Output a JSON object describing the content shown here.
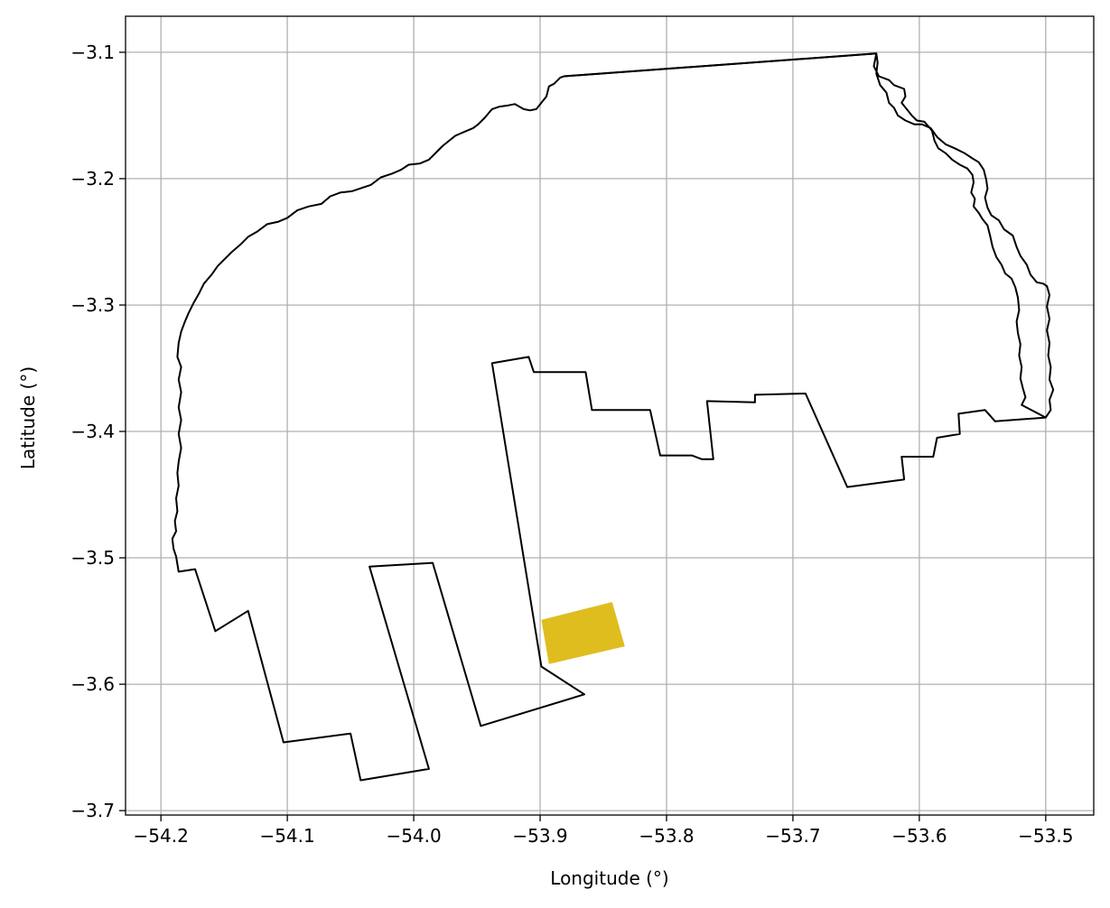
{
  "chart_data": {
    "type": "map",
    "xlabel": "Longitude (°)",
    "ylabel": "Latitude (°)",
    "xlim": [
      -54.228,
      -53.462
    ],
    "ylim": [
      -3.7035,
      -3.0715
    ],
    "grid": true,
    "x_ticks": [
      -54.2,
      -54.1,
      -54.0,
      -53.9,
      -53.8,
      -53.7,
      -53.6,
      -53.5
    ],
    "x_tick_labels": [
      "−54.2",
      "−54.1",
      "−54.0",
      "−53.9",
      "−53.8",
      "−53.7",
      "−53.6",
      "−53.5"
    ],
    "y_ticks": [
      -3.1,
      -3.2,
      -3.3,
      -3.4,
      -3.5,
      -3.6,
      -3.7
    ],
    "y_tick_labels": [
      "−3.1",
      "−3.2",
      "−3.3",
      "−3.4",
      "−3.5",
      "−3.6",
      "−3.7"
    ],
    "colors": {
      "outline": "#000000",
      "highlight": "#dfbd1f",
      "grid": "#b0b0b0"
    },
    "boundary": [
      [
        -53.634,
        -3.101
      ],
      [
        -53.636,
        -3.111
      ],
      [
        -53.632,
        -3.119
      ],
      [
        -53.624,
        -3.122
      ],
      [
        -53.62,
        -3.126
      ],
      [
        -53.612,
        -3.129
      ],
      [
        -53.611,
        -3.135
      ],
      [
        -53.614,
        -3.14
      ],
      [
        -53.61,
        -3.145
      ],
      [
        -53.606,
        -3.15
      ],
      [
        -53.602,
        -3.154
      ],
      [
        -53.596,
        -3.155
      ],
      [
        -53.59,
        -3.162
      ],
      [
        -53.588,
        -3.17
      ],
      [
        -53.585,
        -3.176
      ],
      [
        -53.579,
        -3.18
      ],
      [
        -53.574,
        -3.185
      ],
      [
        -53.568,
        -3.189
      ],
      [
        -53.562,
        -3.192
      ],
      [
        -53.558,
        -3.197
      ],
      [
        -53.557,
        -3.203
      ],
      [
        -53.559,
        -3.211
      ],
      [
        -53.556,
        -3.216
      ],
      [
        -53.557,
        -3.222
      ],
      [
        -53.553,
        -3.227
      ],
      [
        -53.55,
        -3.232
      ],
      [
        -53.546,
        -3.237
      ],
      [
        -53.544,
        -3.245
      ],
      [
        -53.542,
        -3.254
      ],
      [
        -53.539,
        -3.262
      ],
      [
        -53.535,
        -3.268
      ],
      [
        -53.532,
        -3.275
      ],
      [
        -53.527,
        -3.279
      ],
      [
        -53.524,
        -3.286
      ],
      [
        -53.522,
        -3.294
      ],
      [
        -53.521,
        -3.304
      ],
      [
        -53.523,
        -3.313
      ],
      [
        -53.522,
        -3.322
      ],
      [
        -53.52,
        -3.331
      ],
      [
        -53.521,
        -3.34
      ],
      [
        -53.519,
        -3.349
      ],
      [
        -53.52,
        -3.358
      ],
      [
        -53.518,
        -3.366
      ],
      [
        -53.516,
        -3.373
      ],
      [
        -53.519,
        -3.379
      ],
      [
        -53.5,
        -3.389
      ],
      [
        -53.496,
        -3.383
      ],
      [
        -53.497,
        -3.375
      ],
      [
        -53.494,
        -3.367
      ],
      [
        -53.497,
        -3.359
      ],
      [
        -53.496,
        -3.349
      ],
      [
        -53.498,
        -3.34
      ],
      [
        -53.497,
        -3.33
      ],
      [
        -53.499,
        -3.32
      ],
      [
        -53.497,
        -3.311
      ],
      [
        -53.499,
        -3.301
      ],
      [
        -53.497,
        -3.292
      ],
      [
        -53.499,
        -3.285
      ],
      [
        -53.502,
        -3.283
      ],
      [
        -53.507,
        -3.282
      ],
      [
        -53.512,
        -3.276
      ],
      [
        -53.515,
        -3.268
      ],
      [
        -53.52,
        -3.261
      ],
      [
        -53.523,
        -3.254
      ],
      [
        -53.526,
        -3.245
      ],
      [
        -53.533,
        -3.24
      ],
      [
        -53.537,
        -3.233
      ],
      [
        -53.543,
        -3.229
      ],
      [
        -53.546,
        -3.223
      ],
      [
        -53.548,
        -3.215
      ],
      [
        -53.546,
        -3.208
      ],
      [
        -53.547,
        -3.201
      ],
      [
        -53.549,
        -3.193
      ],
      [
        -53.553,
        -3.187
      ],
      [
        -53.558,
        -3.184
      ],
      [
        -53.564,
        -3.18
      ],
      [
        -53.572,
        -3.176
      ],
      [
        -53.579,
        -3.173
      ],
      [
        -53.586,
        -3.167
      ],
      [
        -53.591,
        -3.16
      ],
      [
        -53.598,
        -3.157
      ],
      [
        -53.604,
        -3.157
      ],
      [
        -53.611,
        -3.154
      ],
      [
        -53.617,
        -3.15
      ],
      [
        -53.62,
        -3.144
      ],
      [
        -53.624,
        -3.14
      ],
      [
        -53.626,
        -3.132
      ],
      [
        -53.631,
        -3.126
      ],
      [
        -53.634,
        -3.117
      ],
      [
        -53.633,
        -3.108
      ],
      [
        -53.634,
        -3.101
      ],
      [
        -53.881,
        -3.119
      ],
      [
        -53.884,
        -3.12
      ],
      [
        -53.889,
        -3.125
      ],
      [
        -53.893,
        -3.127
      ],
      [
        -53.895,
        -3.135
      ],
      [
        -53.899,
        -3.14
      ],
      [
        -53.903,
        -3.145
      ],
      [
        -53.908,
        -3.146
      ],
      [
        -53.913,
        -3.145
      ],
      [
        -53.92,
        -3.141
      ],
      [
        -53.925,
        -3.142
      ],
      [
        -53.932,
        -3.143
      ],
      [
        -53.938,
        -3.145
      ],
      [
        -53.944,
        -3.152
      ],
      [
        -53.949,
        -3.157
      ],
      [
        -53.953,
        -3.16
      ],
      [
        -53.96,
        -3.163
      ],
      [
        -53.967,
        -3.166
      ],
      [
        -53.972,
        -3.17
      ],
      [
        -53.977,
        -3.174
      ],
      [
        -53.982,
        -3.179
      ],
      [
        -53.988,
        -3.185
      ],
      [
        -53.995,
        -3.188
      ],
      [
        -54.004,
        -3.189
      ],
      [
        -54.01,
        -3.193
      ],
      [
        -54.017,
        -3.196
      ],
      [
        -54.026,
        -3.199
      ],
      [
        -54.034,
        -3.205
      ],
      [
        -54.04,
        -3.207
      ],
      [
        -54.049,
        -3.21
      ],
      [
        -54.058,
        -3.211
      ],
      [
        -54.066,
        -3.214
      ],
      [
        -54.073,
        -3.22
      ],
      [
        -54.083,
        -3.222
      ],
      [
        -54.092,
        -3.225
      ],
      [
        -54.1,
        -3.231
      ],
      [
        -54.107,
        -3.234
      ],
      [
        -54.116,
        -3.236
      ],
      [
        -54.124,
        -3.242
      ],
      [
        -54.131,
        -3.246
      ],
      [
        -54.137,
        -3.252
      ],
      [
        -54.144,
        -3.258
      ],
      [
        -54.15,
        -3.264
      ],
      [
        -54.155,
        -3.269
      ],
      [
        -54.16,
        -3.276
      ],
      [
        -54.166,
        -3.283
      ],
      [
        -54.17,
        -3.291
      ],
      [
        -54.174,
        -3.298
      ],
      [
        -54.178,
        -3.306
      ],
      [
        -54.181,
        -3.313
      ],
      [
        -54.184,
        -3.321
      ],
      [
        -54.186,
        -3.33
      ],
      [
        -54.187,
        -3.341
      ],
      [
        -54.184,
        -3.349
      ],
      [
        -54.186,
        -3.359
      ],
      [
        -54.184,
        -3.369
      ],
      [
        -54.186,
        -3.381
      ],
      [
        -54.184,
        -3.391
      ],
      [
        -54.186,
        -3.402
      ],
      [
        -54.184,
        -3.413
      ],
      [
        -54.186,
        -3.424
      ],
      [
        -54.187,
        -3.433
      ],
      [
        -54.186,
        -3.443
      ],
      [
        -54.188,
        -3.453
      ],
      [
        -54.187,
        -3.463
      ],
      [
        -54.189,
        -3.471
      ],
      [
        -54.188,
        -3.479
      ],
      [
        -54.191,
        -3.485
      ],
      [
        -54.19,
        -3.493
      ],
      [
        -54.188,
        -3.499
      ],
      [
        -54.187,
        -3.505
      ],
      [
        -54.186,
        -3.511
      ],
      [
        -54.173,
        -3.509
      ],
      [
        -54.157,
        -3.558
      ],
      [
        -54.131,
        -3.542
      ],
      [
        -54.103,
        -3.646
      ],
      [
        -54.05,
        -3.639
      ],
      [
        -54.042,
        -3.676
      ],
      [
        -53.988,
        -3.667
      ],
      [
        -54.035,
        -3.507
      ],
      [
        -53.985,
        -3.504
      ],
      [
        -53.947,
        -3.633
      ],
      [
        -53.865,
        -3.608
      ],
      [
        -53.899,
        -3.586
      ],
      [
        -53.938,
        -3.346
      ],
      [
        -53.909,
        -3.341
      ],
      [
        -53.905,
        -3.353
      ],
      [
        -53.864,
        -3.353
      ],
      [
        -53.859,
        -3.383
      ],
      [
        -53.813,
        -3.383
      ],
      [
        -53.805,
        -3.419
      ],
      [
        -53.78,
        -3.419
      ],
      [
        -53.772,
        -3.422
      ],
      [
        -53.763,
        -3.422
      ],
      [
        -53.768,
        -3.376
      ],
      [
        -53.73,
        -3.377
      ],
      [
        -53.73,
        -3.371
      ],
      [
        -53.69,
        -3.37
      ],
      [
        -53.657,
        -3.444
      ],
      [
        -53.612,
        -3.438
      ],
      [
        -53.614,
        -3.42
      ],
      [
        -53.589,
        -3.42
      ],
      [
        -53.586,
        -3.405
      ],
      [
        -53.568,
        -3.402
      ],
      [
        -53.569,
        -3.386
      ],
      [
        -53.548,
        -3.383
      ],
      [
        -53.54,
        -3.392
      ],
      [
        -53.5,
        -3.389
      ]
    ],
    "boundary_north_edge": [
      [
        -53.881,
        -3.119
      ],
      [
        -53.634,
        -3.101
      ]
    ],
    "highlight_polygon": [
      [
        -53.899,
        -3.549
      ],
      [
        -53.843,
        -3.535
      ],
      [
        -53.833,
        -3.57
      ],
      [
        -53.893,
        -3.584
      ]
    ]
  }
}
